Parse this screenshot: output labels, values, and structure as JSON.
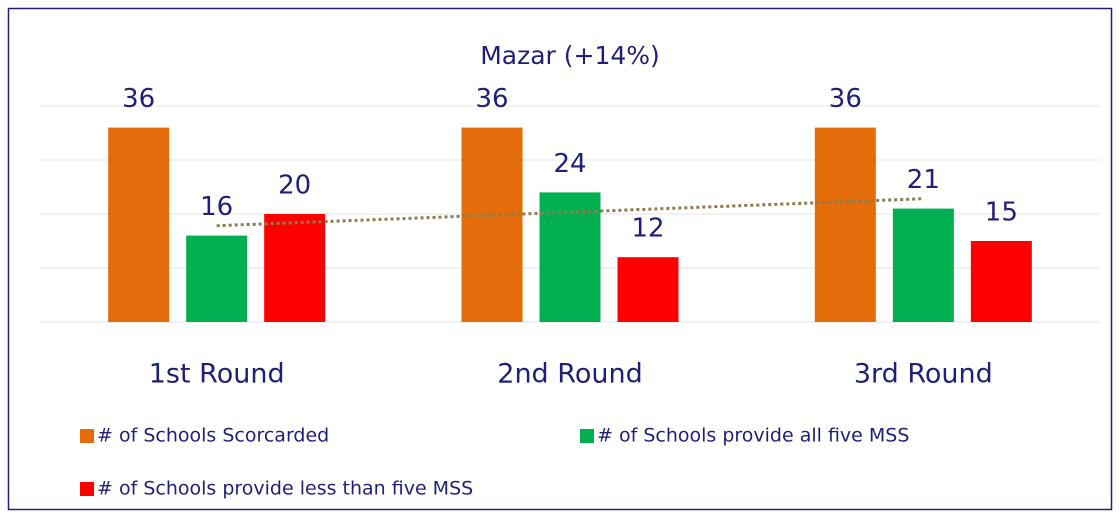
{
  "chart_data": {
    "type": "bar",
    "title": "Mazar (+14%)",
    "categories": [
      "1st Round",
      "2nd Round",
      "3rd Round"
    ],
    "series": [
      {
        "name": "# of Schools Scorcarded",
        "color": "#e46c0a",
        "values": [
          36,
          36,
          36
        ]
      },
      {
        "name": "# of Schools provide all five MSS",
        "color": "#00b050",
        "values": [
          16,
          24,
          21
        ]
      },
      {
        "name": "# of Schools provide less than five MSS",
        "color": "#ff0000",
        "values": [
          20,
          12,
          15
        ]
      }
    ],
    "ylim": [
      0,
      40
    ],
    "yticks": [
      0,
      10,
      20,
      30,
      40
    ],
    "grid": true,
    "trendline": {
      "series": 1,
      "type": "linear",
      "color": "#8b7d4e"
    },
    "legend": "bottom"
  }
}
